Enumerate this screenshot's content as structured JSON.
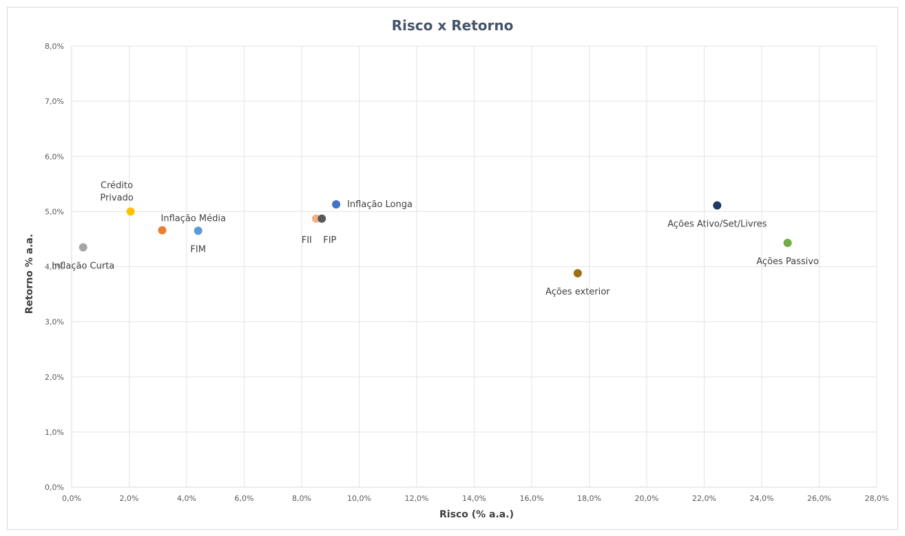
{
  "chart_data": {
    "type": "scatter",
    "title": "Risco x Retorno",
    "xlabel": "Risco (% a.a.)",
    "ylabel": "Retorno % a.a.",
    "xlim": [
      0,
      28
    ],
    "ylim": [
      0,
      8
    ],
    "x_ticks": [
      0,
      2,
      4,
      6,
      8,
      10,
      12,
      14,
      16,
      18,
      20,
      22,
      24,
      26,
      28
    ],
    "y_ticks": [
      0,
      1,
      2,
      3,
      4,
      5,
      6,
      7,
      8
    ],
    "x_tick_labels": [
      "0,0%",
      "2,0%",
      "4,0%",
      "6,0%",
      "8,0%",
      "10,0%",
      "12,0%",
      "14,0%",
      "16,0%",
      "18,0%",
      "20,0%",
      "22,0%",
      "24,0%",
      "26,0%",
      "28,0%"
    ],
    "y_tick_labels": [
      "0,0%",
      "1,0%",
      "2,0%",
      "3,0%",
      "4,0%",
      "5,0%",
      "6,0%",
      "7,0%",
      "8,0%"
    ],
    "grid": true,
    "legend": "none",
    "points": [
      {
        "label": "Inflação Curta",
        "label_lines": [
          "Inflação Curta"
        ],
        "x": 0.4,
        "y": 4.35,
        "color": "#a5a5a5",
        "label_pos": "below"
      },
      {
        "label": "Crédito Privado",
        "label_lines": [
          "Crédito",
          "Privado"
        ],
        "x": 2.05,
        "y": 5.0,
        "color": "#ffc000",
        "label_pos": "above"
      },
      {
        "label": "Inflação Média",
        "label_lines": [
          "Inflação Média"
        ],
        "x": 3.15,
        "y": 4.66,
        "color": "#ed7d31",
        "label_pos": "above-right"
      },
      {
        "label": "FIM",
        "label_lines": [
          "FIM"
        ],
        "x": 4.4,
        "y": 4.65,
        "color": "#5b9bd5",
        "label_pos": "below"
      },
      {
        "label": "FII",
        "label_lines": [
          "FII"
        ],
        "x": 8.5,
        "y": 4.87,
        "color": "#f4b183",
        "label_pos": "below-left"
      },
      {
        "label": "FIP",
        "label_lines": [
          "FIP"
        ],
        "x": 8.7,
        "y": 4.87,
        "color": "#595959",
        "label_pos": "below-right"
      },
      {
        "label": "Inflação Longa",
        "label_lines": [
          "Inflação Longa"
        ],
        "x": 9.2,
        "y": 5.13,
        "color": "#4472c4",
        "label_pos": "right"
      },
      {
        "label": "Ações exterior",
        "label_lines": [
          "Ações exterior"
        ],
        "x": 17.6,
        "y": 3.88,
        "color": "#9e6f12",
        "label_pos": "below"
      },
      {
        "label": "Ações Ativo/Set/Livres",
        "label_lines": [
          "Ações Ativo/Set/Livres"
        ],
        "x": 22.45,
        "y": 5.11,
        "color": "#1f3864",
        "label_pos": "below"
      },
      {
        "label": "Ações Passivo",
        "label_lines": [
          "Ações Passivo"
        ],
        "x": 24.9,
        "y": 4.43,
        "color": "#70ad47",
        "label_pos": "below"
      }
    ]
  }
}
